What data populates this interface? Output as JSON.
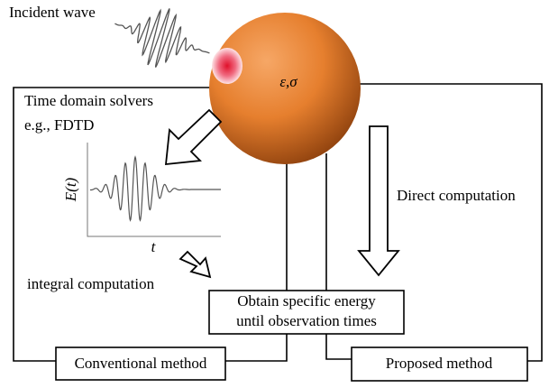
{
  "incident_label": "Incident wave",
  "sphere_label": "ε,σ",
  "solver": {
    "line1": "Time domain solvers",
    "line2": "e.g., FDTD"
  },
  "plot": {
    "y_label": "E(t)",
    "x_label": "t"
  },
  "integral_label": "integral computation",
  "direct_label": "Direct computation",
  "center_box": {
    "line1": "Obtain specific energy",
    "line2": "until observation times"
  },
  "conventional_box": "Conventional method",
  "proposed_box": "Proposed method"
}
